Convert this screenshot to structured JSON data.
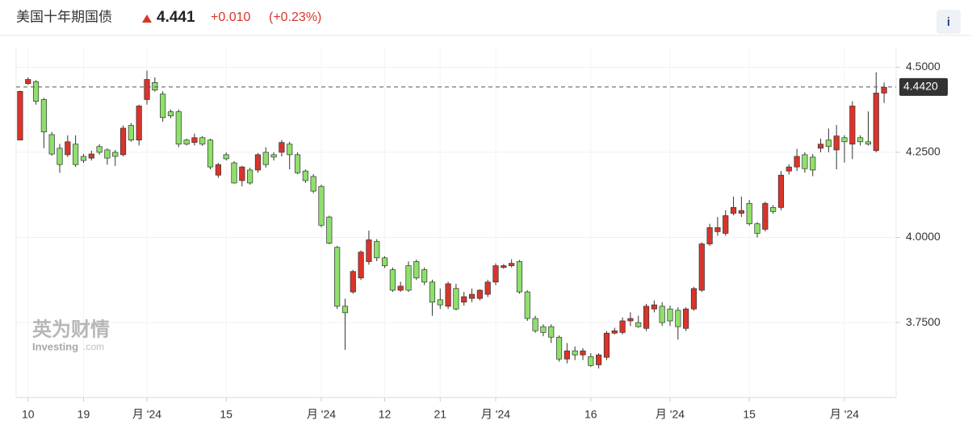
{
  "header": {
    "title": "美国十年期国债",
    "price": "4.441",
    "change": "+0.010",
    "change_pct": "(+0.23%)",
    "info": "i"
  },
  "watermark": {
    "name": "英为财情",
    "brand": "Investing",
    "domain": ".com"
  },
  "chart_data": {
    "type": "candlestick",
    "categories": [
      null,
      "10",
      null,
      null,
      null,
      null,
      null,
      null,
      "19",
      null,
      null,
      null,
      null,
      null,
      null,
      null,
      "月 '24",
      null,
      null,
      null,
      null,
      null,
      null,
      null,
      null,
      null,
      "15",
      null,
      null,
      null,
      null,
      null,
      null,
      null,
      null,
      null,
      null,
      null,
      "月 '24",
      null,
      null,
      null,
      null,
      null,
      null,
      null,
      "12",
      null,
      null,
      null,
      null,
      null,
      null,
      "21",
      null,
      null,
      null,
      null,
      null,
      null,
      "月 '24",
      null,
      null,
      null,
      null,
      null,
      null,
      null,
      null,
      null,
      null,
      null,
      "16",
      null,
      null,
      null,
      null,
      null,
      null,
      null,
      null,
      null,
      "月 '24",
      null,
      null,
      null,
      null,
      null,
      null,
      null,
      null,
      null,
      "15",
      null,
      null,
      null,
      null,
      null,
      null,
      null,
      null,
      null,
      null,
      null,
      "月 '24",
      null,
      null,
      null,
      null,
      null
    ],
    "open": [
      4.286,
      4.452,
      4.457,
      4.405,
      4.302,
      4.262,
      4.243,
      4.274,
      4.238,
      4.233,
      4.267,
      4.257,
      4.25,
      4.243,
      4.329,
      4.286,
      4.405,
      4.455,
      4.421,
      4.369,
      4.369,
      4.286,
      4.279,
      4.293,
      4.286,
      4.183,
      4.243,
      4.219,
      4.167,
      4.198,
      4.198,
      4.25,
      4.243,
      4.25,
      4.274,
      4.243,
      4.195,
      4.179,
      4.15,
      4.06,
      3.971,
      3.798,
      3.84,
      3.881,
      3.929,
      3.988,
      3.94,
      3.905,
      3.845,
      3.917,
      3.929,
      3.905,
      3.869,
      3.817,
      3.798,
      3.85,
      3.81,
      3.821,
      3.821,
      3.833,
      3.869,
      3.912,
      3.917,
      3.929,
      3.84,
      3.762,
      3.738,
      3.738,
      3.707,
      3.643,
      3.667,
      3.655,
      3.65,
      3.626,
      3.648,
      3.719,
      3.721,
      3.755,
      3.75,
      3.733,
      3.79,
      3.798,
      3.79,
      3.786,
      3.733,
      3.79,
      3.845,
      3.981,
      4.017,
      4.012,
      4.071,
      4.071,
      4.1,
      4.04,
      4.024,
      4.088,
      4.088,
      4.195,
      4.207,
      4.243,
      4.236,
      4.262,
      4.286,
      4.257,
      4.293,
      4.274,
      4.293,
      4.281,
      4.255,
      4.424
    ],
    "high": [
      4.431,
      4.47,
      4.462,
      4.41,
      4.31,
      4.275,
      4.3,
      4.3,
      4.245,
      4.255,
      4.274,
      4.262,
      4.257,
      4.329,
      4.336,
      4.39,
      4.49,
      4.47,
      4.429,
      4.376,
      4.376,
      4.29,
      4.305,
      4.298,
      4.29,
      4.219,
      4.25,
      4.224,
      4.21,
      4.205,
      4.248,
      4.265,
      4.25,
      4.286,
      4.281,
      4.25,
      4.2,
      4.186,
      4.155,
      4.064,
      3.975,
      3.82,
      3.905,
      3.962,
      4.02,
      3.995,
      3.945,
      3.912,
      3.87,
      3.93,
      3.935,
      3.912,
      3.876,
      3.85,
      3.87,
      3.864,
      3.84,
      3.85,
      3.848,
      3.876,
      3.924,
      3.922,
      3.936,
      3.934,
      3.845,
      3.77,
      3.745,
      3.745,
      3.712,
      3.69,
      3.68,
      3.675,
      3.66,
      3.66,
      3.725,
      3.735,
      3.765,
      3.78,
      3.77,
      3.805,
      3.815,
      3.81,
      3.8,
      3.795,
      3.795,
      3.855,
      3.986,
      4.04,
      4.06,
      4.08,
      4.12,
      4.12,
      4.11,
      4.045,
      4.105,
      4.095,
      4.195,
      4.215,
      4.26,
      4.25,
      4.245,
      4.29,
      4.32,
      4.33,
      4.3,
      4.4,
      4.3,
      4.37,
      4.485,
      4.455
    ],
    "low": [
      4.286,
      4.448,
      4.39,
      4.262,
      4.24,
      4.19,
      4.236,
      4.207,
      4.219,
      4.226,
      4.243,
      4.214,
      4.21,
      4.238,
      4.281,
      4.27,
      4.39,
      4.428,
      4.34,
      4.35,
      4.265,
      4.27,
      4.27,
      4.269,
      4.2,
      4.175,
      4.226,
      4.158,
      4.15,
      4.155,
      4.19,
      4.205,
      4.226,
      4.238,
      4.2,
      4.186,
      4.16,
      4.13,
      4.03,
      3.98,
      3.79,
      3.67,
      3.835,
      3.875,
      3.92,
      3.93,
      3.91,
      3.84,
      3.84,
      3.84,
      3.875,
      3.86,
      3.77,
      3.79,
      3.79,
      3.786,
      3.8,
      3.81,
      3.815,
      3.825,
      3.86,
      3.908,
      3.912,
      3.835,
      3.755,
      3.72,
      3.71,
      3.69,
      3.635,
      3.63,
      3.64,
      3.64,
      3.62,
      3.615,
      3.64,
      3.715,
      3.715,
      3.74,
      3.735,
      3.725,
      3.78,
      3.74,
      3.74,
      3.7,
      3.725,
      3.785,
      3.84,
      3.975,
      4.005,
      4.005,
      4.065,
      4.06,
      4.035,
      4.0,
      4.018,
      4.07,
      4.08,
      4.185,
      4.195,
      4.19,
      4.18,
      4.25,
      4.25,
      4.2,
      4.22,
      4.23,
      4.27,
      4.27,
      4.25,
      4.395
    ],
    "close": [
      4.429,
      4.464,
      4.4,
      4.31,
      4.245,
      4.214,
      4.281,
      4.214,
      4.226,
      4.245,
      4.25,
      4.233,
      4.238,
      4.321,
      4.286,
      4.386,
      4.464,
      4.433,
      4.352,
      4.357,
      4.274,
      4.274,
      4.293,
      4.274,
      4.207,
      4.214,
      4.231,
      4.16,
      4.207,
      4.16,
      4.243,
      4.214,
      4.236,
      4.279,
      4.243,
      4.19,
      4.167,
      4.136,
      4.036,
      3.983,
      3.798,
      3.779,
      3.9,
      3.957,
      3.993,
      3.94,
      3.917,
      3.845,
      3.857,
      3.845,
      3.881,
      3.869,
      3.81,
      3.802,
      3.864,
      3.79,
      3.826,
      3.833,
      3.845,
      3.869,
      3.917,
      3.917,
      3.924,
      3.84,
      3.762,
      3.726,
      3.721,
      3.707,
      3.643,
      3.667,
      3.655,
      3.667,
      3.624,
      3.655,
      3.719,
      3.726,
      3.755,
      3.762,
      3.738,
      3.798,
      3.802,
      3.75,
      3.755,
      3.738,
      3.79,
      3.85,
      3.981,
      4.029,
      4.029,
      4.064,
      4.088,
      4.079,
      4.04,
      4.012,
      4.1,
      4.076,
      4.183,
      4.207,
      4.238,
      4.202,
      4.198,
      4.274,
      4.267,
      4.298,
      4.281,
      4.386,
      4.281,
      4.274,
      4.424,
      4.441
    ],
    "up_color": "#d9342b",
    "down_color": "#8fe06b",
    "ylim": [
      3.53,
      4.56
    ],
    "yticks": [
      {
        "value": 3.75,
        "label": "3.7500"
      },
      {
        "value": 4.0,
        "label": "4.0000"
      },
      {
        "value": 4.25,
        "label": "4.2500"
      },
      {
        "value": 4.5,
        "label": "4.5000"
      }
    ],
    "last_price": {
      "value": 4.442,
      "label": "4.4420"
    },
    "grid": true
  }
}
